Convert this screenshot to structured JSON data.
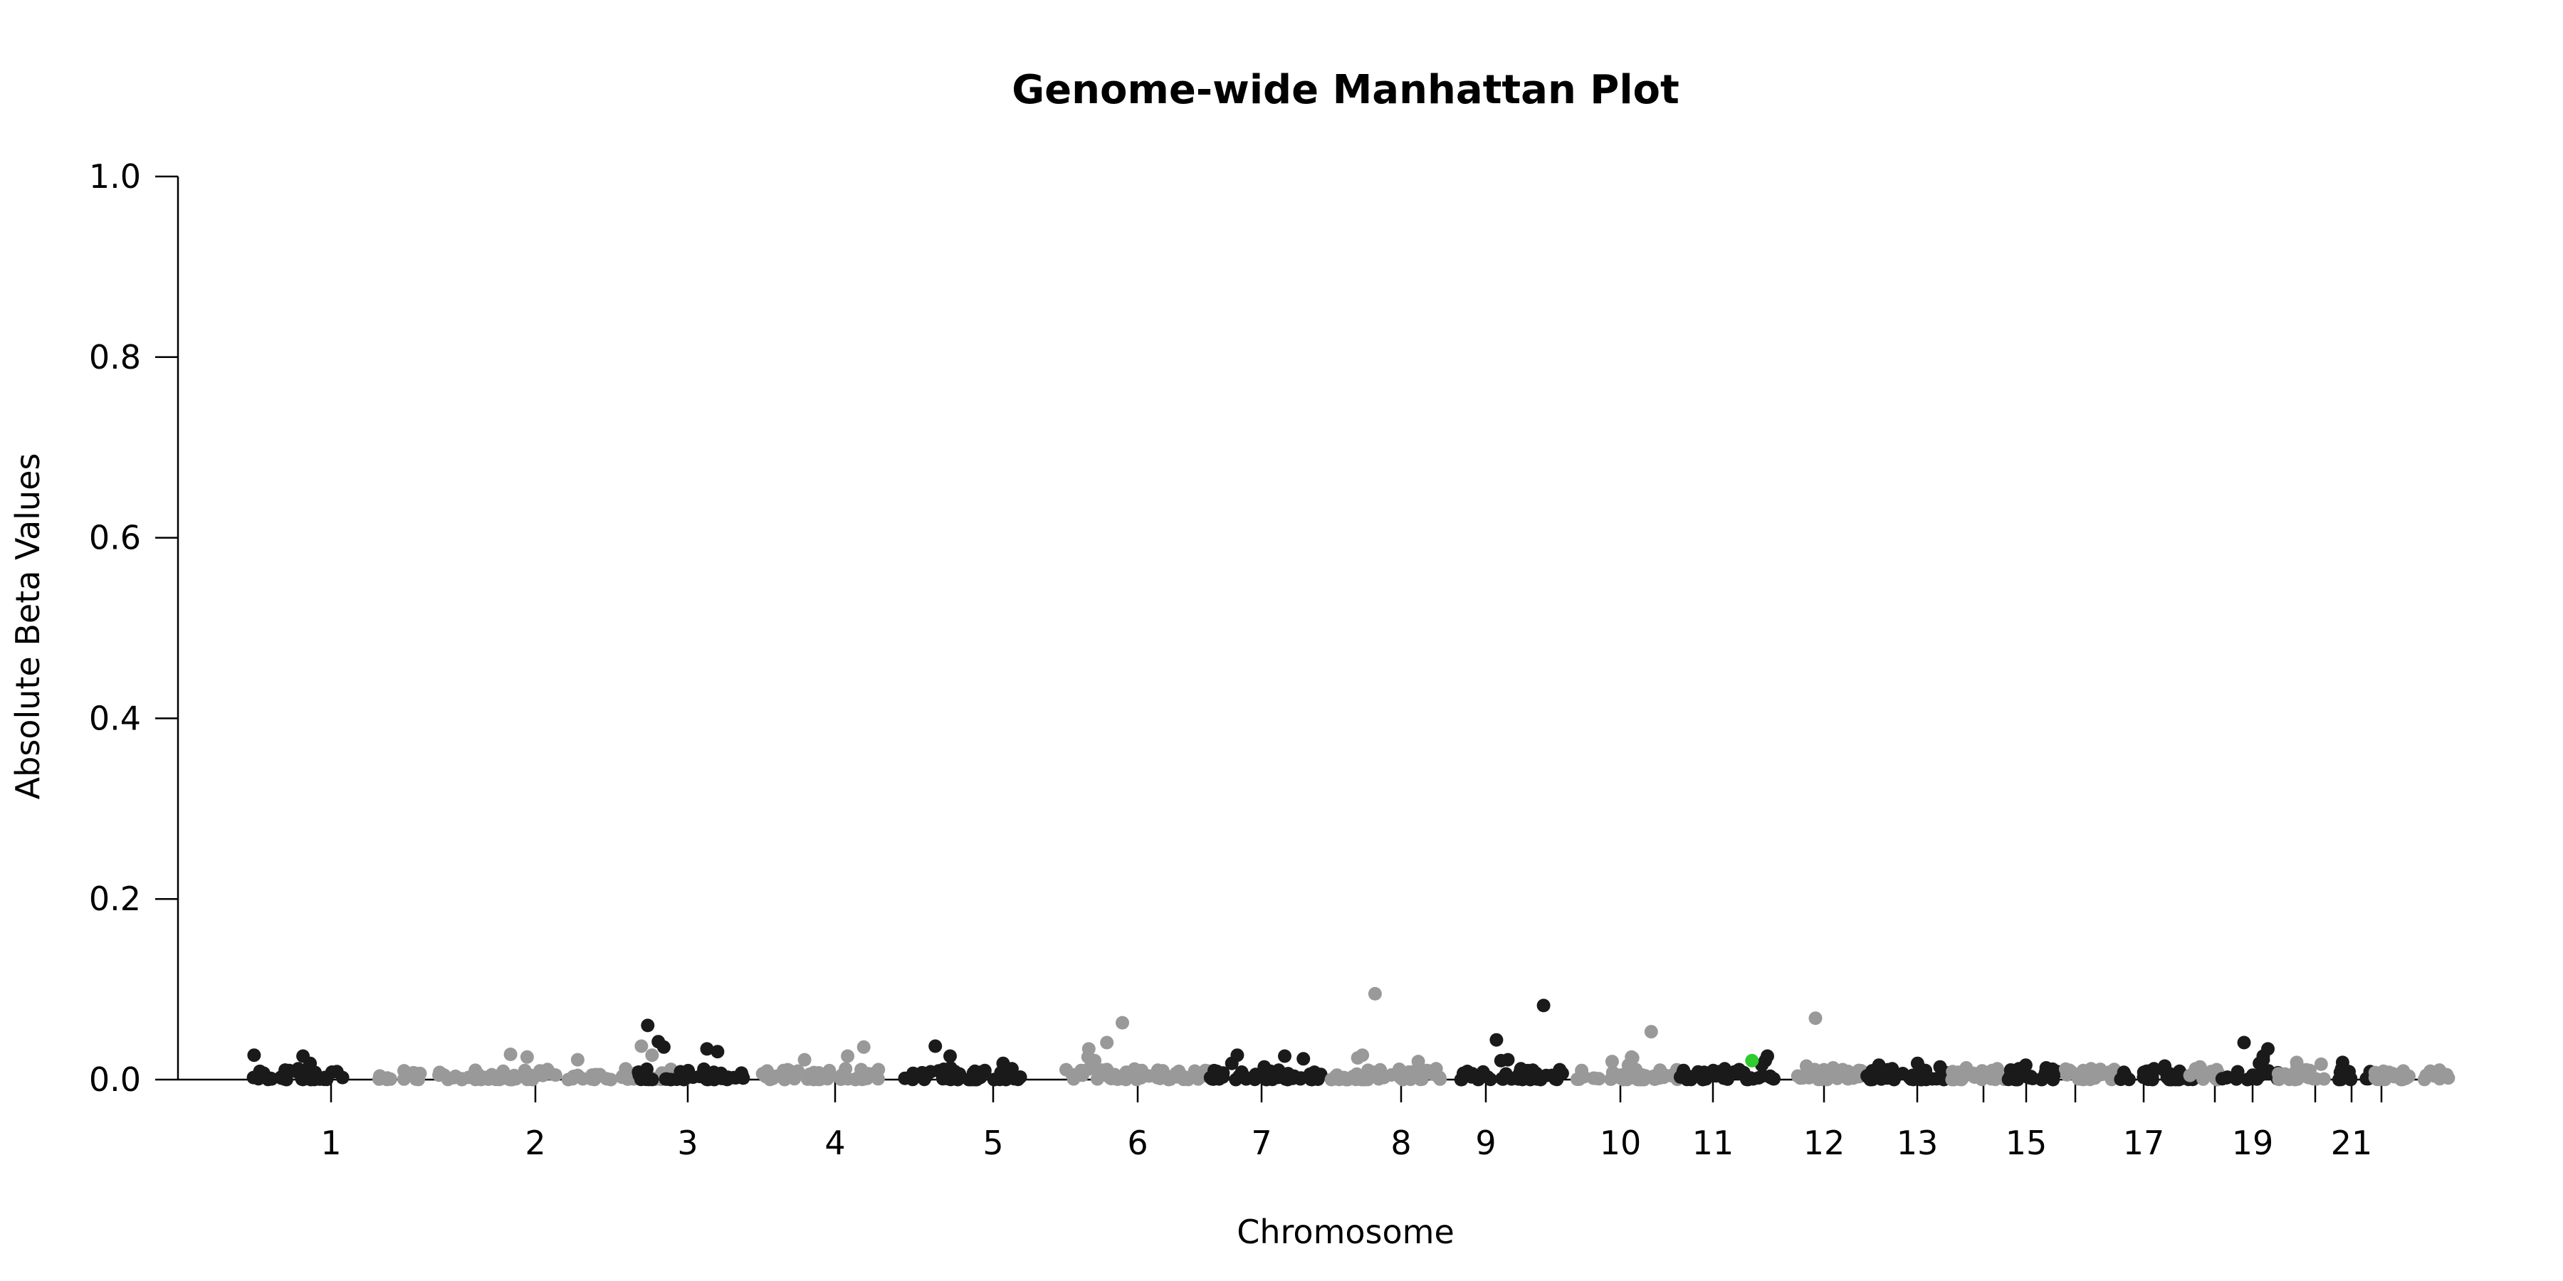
{
  "chart_data": {
    "type": "scatter",
    "title": "Genome-wide Manhattan Plot",
    "xlabel": "Chromosome",
    "ylabel": "Absolute Beta Values",
    "ylim": [
      0,
      1.0
    ],
    "y_ticks": [
      "0.0",
      "0.2",
      "0.4",
      "0.6",
      "0.8",
      "1.0"
    ],
    "grid": false,
    "legend": "none",
    "colors": {
      "odd": "#1a1a1a",
      "even": "#999999",
      "highlight": "#2ecc2e"
    },
    "x_ticks": [
      {
        "label": "1",
        "chrom": 1
      },
      {
        "label": "2",
        "chrom": 2
      },
      {
        "label": "3",
        "chrom": 3
      },
      {
        "label": "4",
        "chrom": 4
      },
      {
        "label": "5",
        "chrom": 5
      },
      {
        "label": "6",
        "chrom": 6
      },
      {
        "label": "7",
        "chrom": 7
      },
      {
        "label": "8",
        "chrom": 8
      },
      {
        "label": "9",
        "chrom": 9
      },
      {
        "label": "10",
        "chrom": 10
      },
      {
        "label": "11",
        "chrom": 11
      },
      {
        "label": "12",
        "chrom": 12
      },
      {
        "label": "13",
        "chrom": 13
      },
      {
        "label": "",
        "chrom": 14
      },
      {
        "label": "15",
        "chrom": 15
      },
      {
        "label": "",
        "chrom": 16
      },
      {
        "label": "17",
        "chrom": 17
      },
      {
        "label": "",
        "chrom": 18
      },
      {
        "label": "19",
        "chrom": 19
      },
      {
        "label": "",
        "chrom": 20
      },
      {
        "label": "21",
        "chrom": 21
      },
      {
        "label": "",
        "chrom": 22
      }
    ],
    "chromosomes": [
      {
        "chrom": 1,
        "peaks": [
          0.026,
          0.018,
          0.027,
          0.012,
          0.01
        ]
      },
      {
        "chrom": 2,
        "peaks": [
          0.037,
          0.028,
          0.025,
          0.027,
          0.022
        ]
      },
      {
        "chrom": 3,
        "peaks": [
          0.06,
          0.042,
          0.036,
          0.034,
          0.031
        ]
      },
      {
        "chrom": 4,
        "peaks": [
          0.036,
          0.026,
          0.022,
          0.012,
          0.01
        ]
      },
      {
        "chrom": 5,
        "peaks": [
          0.037,
          0.026,
          0.018,
          0.013,
          0.01
        ]
      },
      {
        "chrom": 6,
        "peaks": [
          0.063,
          0.041,
          0.034,
          0.025,
          0.021
        ]
      },
      {
        "chrom": 7,
        "peaks": [
          0.027,
          0.026,
          0.023,
          0.018,
          0.014
        ]
      },
      {
        "chrom": 8,
        "peaks": [
          0.095,
          0.027,
          0.024,
          0.02,
          0.012
        ]
      },
      {
        "chrom": 9,
        "peaks": [
          0.082,
          0.044,
          0.022,
          0.021,
          0.012
        ]
      },
      {
        "chrom": 10,
        "peaks": [
          0.053,
          0.025,
          0.024,
          0.02,
          0.016
        ]
      },
      {
        "chrom": 11,
        "peaks": [
          0.026,
          0.021,
          0.016,
          0.012,
          0.01
        ]
      },
      {
        "chrom": 12,
        "peaks": [
          0.068,
          0.015,
          0.013,
          0.01,
          0.008
        ]
      },
      {
        "chrom": 13,
        "peaks": [
          0.018,
          0.016,
          0.014,
          0.012,
          0.01
        ]
      },
      {
        "chrom": 14,
        "peaks": [
          0.013,
          0.012,
          0.01,
          0.008,
          0.006
        ]
      },
      {
        "chrom": 15,
        "peaks": [
          0.016,
          0.013,
          0.012,
          0.01,
          0.008
        ]
      },
      {
        "chrom": 16,
        "peaks": [
          0.012,
          0.01,
          0.009,
          0.008,
          0.006
        ]
      },
      {
        "chrom": 17,
        "peaks": [
          0.015,
          0.013,
          0.012,
          0.01,
          0.008
        ]
      },
      {
        "chrom": 18,
        "peaks": [
          0.014,
          0.011,
          0.009,
          0.008,
          0.006
        ]
      },
      {
        "chrom": 19,
        "peaks": [
          0.041,
          0.034,
          0.026,
          0.022,
          0.018
        ]
      },
      {
        "chrom": 20,
        "peaks": [
          0.019,
          0.017,
          0.015,
          0.012,
          0.01
        ]
      },
      {
        "chrom": 21,
        "peaks": [
          0.019,
          0.012,
          0.01,
          0.008,
          0.006
        ]
      },
      {
        "chrom": 22,
        "peaks": [
          0.008,
          0.006,
          0.005,
          0.004,
          0.003
        ]
      }
    ],
    "highlight_points": [
      {
        "chrom": 11,
        "position_fraction": 0.72,
        "y": 0.021
      }
    ]
  }
}
